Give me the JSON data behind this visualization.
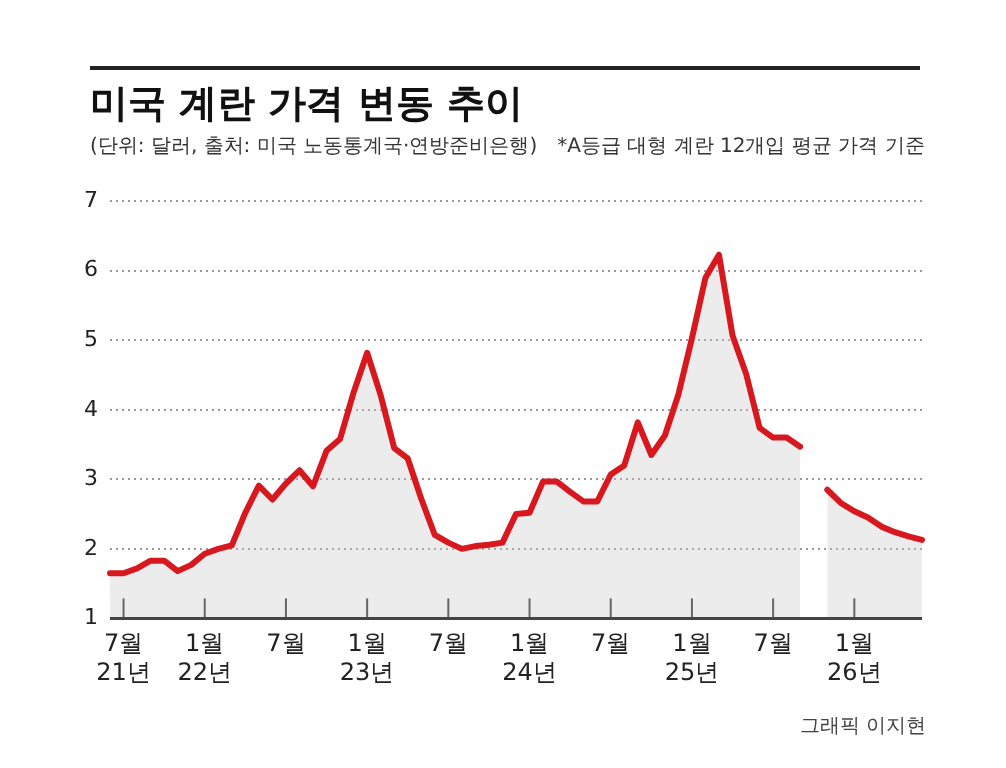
{
  "chart_data": {
    "type": "area",
    "title": "미국 계란 가격 변동 추이",
    "subtitle": "(단위: 달러, 출처: 미국 노동통계국·연방준비은행)",
    "annotations": [
      "*A등급 대형 계란 12개입 평균 가격 기준",
      "그래픽 이지현"
    ],
    "categories": [
      null,
      "7월\n21년",
      null,
      null,
      null,
      null,
      null,
      "1월\n22년",
      null,
      null,
      null,
      null,
      null,
      "7월",
      null,
      null,
      null,
      null,
      null,
      "1월\n23년",
      null,
      null,
      null,
      null,
      null,
      "7월",
      null,
      null,
      null,
      null,
      null,
      "1월\n24년",
      null,
      null,
      null,
      null,
      null,
      "7월",
      null,
      null,
      null,
      null,
      null,
      "1월\n25년",
      null,
      null,
      null,
      null,
      null,
      "7월",
      null,
      null,
      null,
      null,
      null,
      "1월\n26년",
      null,
      null,
      null,
      null,
      null
    ],
    "series": [
      {
        "color": "#d7191f",
        "values": [
          1.65,
          1.65,
          1.72,
          1.83,
          1.83,
          1.68,
          1.77,
          1.93,
          2.0,
          2.05,
          2.52,
          2.91,
          2.71,
          2.94,
          3.13,
          2.9,
          3.41,
          3.58,
          4.25,
          4.82,
          4.21,
          3.45,
          3.3,
          2.72,
          2.2,
          2.09,
          2.0,
          2.04,
          2.06,
          2.09,
          2.5,
          2.52,
          2.97,
          2.97,
          2.82,
          2.68,
          2.68,
          3.07,
          3.2,
          3.82,
          3.35,
          3.63,
          4.22,
          5.03,
          5.9,
          6.23,
          5.07,
          4.52,
          3.74,
          3.6,
          3.6,
          3.47,
          null,
          2.85,
          2.66,
          2.54,
          2.45,
          2.32,
          2.24,
          2.18,
          2.13
        ]
      }
    ],
    "ylim": [
      1,
      7
    ],
    "yticks": [
      1,
      2,
      3,
      4,
      5,
      6,
      7
    ],
    "grid": "y",
    "legend": false,
    "marker": "none",
    "line_style": "solid"
  }
}
